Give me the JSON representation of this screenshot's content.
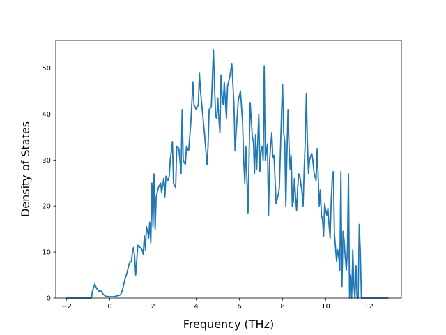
{
  "chart_data": {
    "type": "line",
    "title": "",
    "xlabel": "Frequency (THz)",
    "ylabel": "Density of States",
    "xlim": [
      -2.5,
      13.5
    ],
    "ylim": [
      0,
      56
    ],
    "x_ticks": [
      -2,
      0,
      2,
      4,
      6,
      8,
      10,
      12
    ],
    "y_ticks": [
      0,
      10,
      20,
      30,
      40,
      50
    ],
    "grid": false,
    "legend": "none",
    "color": "#1f77b4",
    "series": [
      {
        "points": [
          [
            -2.0,
            0
          ],
          [
            -1.0,
            0
          ],
          [
            -0.85,
            0
          ],
          [
            -0.8,
            1.5
          ],
          [
            -0.7,
            3.0
          ],
          [
            -0.6,
            2.0
          ],
          [
            -0.5,
            1.5
          ],
          [
            -0.4,
            1.5
          ],
          [
            -0.3,
            0.8
          ],
          [
            -0.2,
            0.4
          ],
          [
            0.0,
            0.3
          ],
          [
            0.2,
            0.3
          ],
          [
            0.35,
            0.5
          ],
          [
            0.45,
            0.6
          ],
          [
            0.5,
            0.8
          ],
          [
            0.55,
            1.2
          ],
          [
            0.6,
            2.0
          ],
          [
            0.7,
            4.0
          ],
          [
            0.8,
            5.5
          ],
          [
            0.9,
            7.5
          ],
          [
            1.0,
            8.0
          ],
          [
            1.05,
            10.0
          ],
          [
            1.1,
            11.0
          ],
          [
            1.15,
            9.0
          ],
          [
            1.2,
            5.0
          ],
          [
            1.3,
            11.5
          ],
          [
            1.4,
            11.0
          ],
          [
            1.5,
            10.5
          ],
          [
            1.55,
            9.5
          ],
          [
            1.6,
            13.5
          ],
          [
            1.65,
            10.5
          ],
          [
            1.7,
            15.5
          ],
          [
            1.75,
            14.5
          ],
          [
            1.8,
            13.0
          ],
          [
            1.85,
            16.5
          ],
          [
            1.9,
            12.0
          ],
          [
            1.95,
            25.0
          ],
          [
            2.0,
            15.5
          ],
          [
            2.05,
            27.0
          ],
          [
            2.1,
            15.0
          ],
          [
            2.15,
            22.0
          ],
          [
            2.25,
            24.0
          ],
          [
            2.35,
            25.0
          ],
          [
            2.4,
            23.0
          ],
          [
            2.5,
            26.0
          ],
          [
            2.55,
            22.0
          ],
          [
            2.6,
            26.5
          ],
          [
            2.7,
            25.5
          ],
          [
            2.75,
            26.5
          ],
          [
            2.8,
            30.0
          ],
          [
            2.9,
            34.0
          ],
          [
            2.95,
            25.0
          ],
          [
            3.05,
            24.0
          ],
          [
            3.1,
            33.0
          ],
          [
            3.2,
            32.5
          ],
          [
            3.3,
            27.0
          ],
          [
            3.35,
            41.0
          ],
          [
            3.4,
            30.0
          ],
          [
            3.5,
            29.0
          ],
          [
            3.55,
            33.0
          ],
          [
            3.65,
            32.0
          ],
          [
            3.75,
            38.0
          ],
          [
            3.85,
            47.0
          ],
          [
            3.9,
            42.0
          ],
          [
            4.0,
            41.0
          ],
          [
            4.1,
            42.0
          ],
          [
            4.15,
            49.0
          ],
          [
            4.2,
            45.0
          ],
          [
            4.3,
            40.0
          ],
          [
            4.4,
            35.0
          ],
          [
            4.5,
            29.0
          ],
          [
            4.55,
            33.0
          ],
          [
            4.6,
            41.0
          ],
          [
            4.7,
            41.5
          ],
          [
            4.8,
            54.0
          ],
          [
            4.85,
            46.0
          ],
          [
            4.9,
            39.5
          ],
          [
            4.95,
            39.0
          ],
          [
            5.0,
            43.5
          ],
          [
            5.05,
            39.0
          ],
          [
            5.1,
            36.0
          ],
          [
            5.15,
            48.5
          ],
          [
            5.2,
            44.0
          ],
          [
            5.25,
            42.0
          ],
          [
            5.3,
            47.0
          ],
          [
            5.4,
            39.0
          ],
          [
            5.45,
            46.0
          ],
          [
            5.55,
            48.0
          ],
          [
            5.65,
            51.0
          ],
          [
            5.75,
            42.0
          ],
          [
            5.8,
            32.0
          ],
          [
            5.85,
            36.0
          ],
          [
            5.95,
            43.0
          ],
          [
            6.05,
            45.0
          ],
          [
            6.15,
            38.0
          ],
          [
            6.2,
            30.0
          ],
          [
            6.25,
            25.0
          ],
          [
            6.3,
            33.0
          ],
          [
            6.4,
            18.5
          ],
          [
            6.45,
            31.0
          ],
          [
            6.5,
            42.5
          ],
          [
            6.6,
            35.0
          ],
          [
            6.65,
            34.0
          ],
          [
            6.7,
            27.0
          ],
          [
            6.75,
            35.5
          ],
          [
            6.8,
            28.0
          ],
          [
            6.9,
            40.0
          ],
          [
            6.95,
            27.5
          ],
          [
            7.0,
            32.0
          ],
          [
            7.05,
            33.0
          ],
          [
            7.1,
            30.0
          ],
          [
            7.15,
            50.5
          ],
          [
            7.2,
            30.0
          ],
          [
            7.3,
            33.5
          ],
          [
            7.35,
            18.0
          ],
          [
            7.4,
            30.0
          ],
          [
            7.5,
            36.0
          ],
          [
            7.55,
            30.5
          ],
          [
            7.6,
            31.0
          ],
          [
            7.65,
            26.0
          ],
          [
            7.7,
            20.5
          ],
          [
            7.8,
            22.5
          ],
          [
            7.85,
            24.0
          ],
          [
            7.9,
            32.0
          ],
          [
            7.95,
            40.0
          ],
          [
            8.0,
            46.5
          ],
          [
            8.05,
            36.0
          ],
          [
            8.1,
            34.0
          ],
          [
            8.15,
            20.0
          ],
          [
            8.2,
            31.0
          ],
          [
            8.25,
            41.0
          ],
          [
            8.3,
            33.0
          ],
          [
            8.35,
            28.0
          ],
          [
            8.4,
            31.0
          ],
          [
            8.45,
            20.0
          ],
          [
            8.5,
            21.0
          ],
          [
            8.55,
            26.0
          ],
          [
            8.6,
            22.0
          ],
          [
            8.65,
            19.0
          ],
          [
            8.7,
            24.0
          ],
          [
            8.75,
            27.0
          ],
          [
            8.8,
            26.5
          ],
          [
            8.9,
            23.0
          ],
          [
            8.95,
            20.0
          ],
          [
            9.0,
            28.0
          ],
          [
            9.05,
            34.0
          ],
          [
            9.1,
            44.5
          ],
          [
            9.15,
            34.0
          ],
          [
            9.2,
            27.0
          ],
          [
            9.25,
            30.0
          ],
          [
            9.35,
            31.5
          ],
          [
            9.4,
            30.0
          ],
          [
            9.45,
            27.5
          ],
          [
            9.55,
            25.5
          ],
          [
            9.6,
            32.5
          ],
          [
            9.65,
            26.0
          ],
          [
            9.7,
            20.0
          ],
          [
            9.75,
            23.5
          ],
          [
            9.8,
            18.0
          ],
          [
            9.85,
            17.0
          ],
          [
            9.9,
            13.5
          ],
          [
            9.95,
            20.5
          ],
          [
            10.0,
            19.0
          ],
          [
            10.05,
            18.0
          ],
          [
            10.1,
            19.5
          ],
          [
            10.15,
            16.0
          ],
          [
            10.2,
            13.0
          ],
          [
            10.25,
            21.0
          ],
          [
            10.3,
            26.0
          ],
          [
            10.35,
            27.5
          ],
          [
            10.4,
            14.0
          ],
          [
            10.45,
            11.0
          ],
          [
            10.5,
            8.0
          ],
          [
            10.55,
            10.5
          ],
          [
            10.6,
            9.0
          ],
          [
            10.65,
            6.0
          ],
          [
            10.7,
            27.5
          ],
          [
            10.75,
            2.5
          ],
          [
            10.8,
            14.5
          ],
          [
            10.85,
            12.5
          ],
          [
            10.9,
            9.0
          ],
          [
            10.95,
            6.0
          ],
          [
            11.0,
            10.0
          ],
          [
            11.05,
            27.0
          ],
          [
            11.1,
            0
          ],
          [
            11.15,
            5.0
          ],
          [
            11.2,
            0
          ],
          [
            11.25,
            10.5
          ],
          [
            11.3,
            3.0
          ],
          [
            11.35,
            0
          ],
          [
            11.4,
            7.0
          ],
          [
            11.45,
            0
          ],
          [
            11.5,
            0
          ],
          [
            11.55,
            16.0
          ],
          [
            11.6,
            10.0
          ],
          [
            11.65,
            0
          ],
          [
            11.7,
            0
          ],
          [
            12.0,
            0
          ],
          [
            12.5,
            0
          ],
          [
            12.9,
            0
          ]
        ]
      }
    ]
  }
}
